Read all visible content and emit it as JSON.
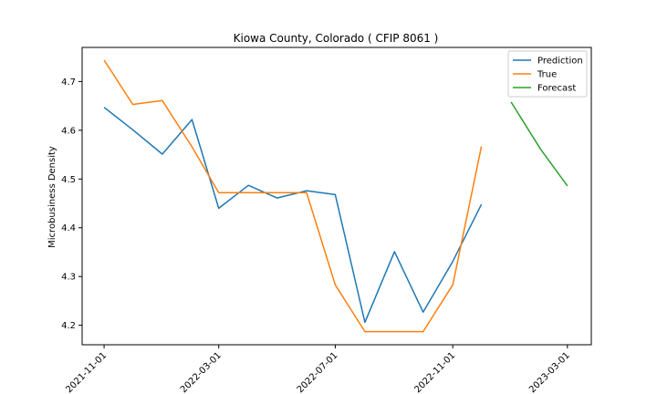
{
  "chart_data": {
    "type": "line",
    "title": "Kiowa County, Colorado ( CFIP 8061 )",
    "xlabel": "",
    "ylabel": "Microbusiness Density",
    "x_ticks": [
      "2021-11-01",
      "2022-03-01",
      "2022-07-01",
      "2022-11-01",
      "2023-03-01"
    ],
    "y_ticks": [
      "4.2",
      "4.3",
      "4.4",
      "4.5",
      "4.6",
      "4.7"
    ],
    "ylim": [
      4.16,
      4.77
    ],
    "xlim": [
      "2021-10-09",
      "2023-03-26"
    ],
    "legend_position": "top-right",
    "grid": false,
    "series": [
      {
        "name": "Prediction",
        "color": "#1f77b4",
        "x": [
          "2021-11-01",
          "2021-12-01",
          "2022-01-01",
          "2022-02-01",
          "2022-03-01",
          "2022-04-01",
          "2022-05-01",
          "2022-06-01",
          "2022-07-01",
          "2022-08-01",
          "2022-09-01",
          "2022-10-01",
          "2022-11-01",
          "2022-12-01"
        ],
        "y": [
          4.647,
          4.601,
          4.551,
          4.622,
          4.44,
          4.487,
          4.461,
          4.476,
          4.468,
          4.206,
          4.351,
          4.227,
          4.331,
          4.448
        ]
      },
      {
        "name": "True",
        "color": "#ff7f0e",
        "x": [
          "2021-11-01",
          "2021-12-01",
          "2022-01-01",
          "2022-02-01",
          "2022-03-01",
          "2022-04-01",
          "2022-05-01",
          "2022-06-01",
          "2022-07-01",
          "2022-08-01",
          "2022-09-01",
          "2022-10-01",
          "2022-11-01",
          "2022-12-01"
        ],
        "y": [
          4.744,
          4.653,
          4.661,
          4.566,
          4.472,
          4.472,
          4.472,
          4.472,
          4.283,
          4.187,
          4.187,
          4.187,
          4.283,
          4.567
        ]
      },
      {
        "name": "Forecast",
        "color": "#2ca02c",
        "x": [
          "2023-01-01",
          "2023-02-01",
          "2023-03-01"
        ],
        "y": [
          4.658,
          4.561,
          4.486
        ]
      }
    ]
  }
}
